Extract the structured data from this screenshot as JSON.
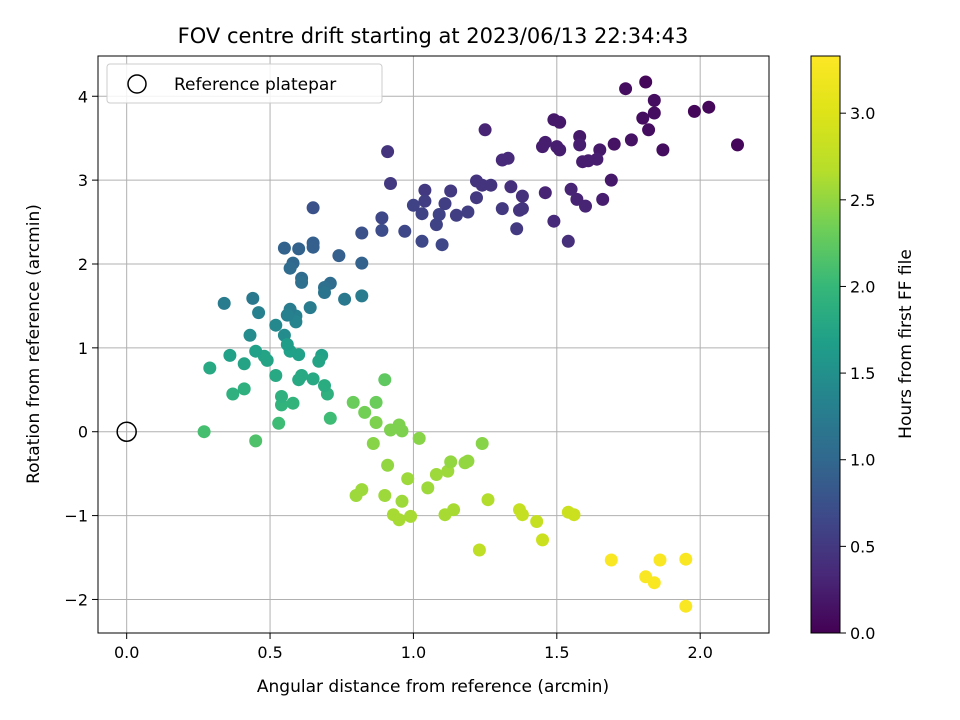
{
  "chart_data": {
    "type": "scatter",
    "title": "FOV centre drift starting at 2023/06/13 22:34:43",
    "xlabel": "Angular distance from reference (arcmin)",
    "ylabel": "Rotation from reference (arcmin)",
    "xlim": [
      -0.1,
      2.24
    ],
    "ylim": [
      -2.4,
      4.48
    ],
    "xticks": [
      0.0,
      0.5,
      1.0,
      1.5,
      2.0
    ],
    "xtick_labels": [
      "0.0",
      "0.5",
      "1.0",
      "1.5",
      "2.0"
    ],
    "yticks": [
      -2,
      -1,
      0,
      1,
      2,
      3,
      4
    ],
    "ytick_labels": [
      "−2",
      "−1",
      "0",
      "1",
      "2",
      "3",
      "4"
    ],
    "grid": true,
    "legend": {
      "location": "upper-left",
      "entries": [
        "Reference platepar"
      ]
    },
    "reference_point": {
      "x": 0.0,
      "y": 0.0,
      "marker": "open-circle",
      "label": "Reference platepar"
    },
    "colorbar": {
      "label": "Hours from first FF file",
      "colormap": "viridis",
      "range": [
        0.0,
        3.33
      ],
      "ticks": [
        0.0,
        0.5,
        1.0,
        1.5,
        2.0,
        2.5,
        3.0
      ],
      "tick_labels": [
        "0.0",
        "0.5",
        "1.0",
        "1.5",
        "2.0",
        "2.5",
        "3.0"
      ]
    },
    "points": [
      [
        2.13,
        3.42,
        0.05
      ],
      [
        2.03,
        3.87,
        0.05
      ],
      [
        1.98,
        3.82,
        0.05
      ],
      [
        1.87,
        3.36,
        0.1
      ],
      [
        1.84,
        3.95,
        0.1
      ],
      [
        1.84,
        3.8,
        0.1
      ],
      [
        1.82,
        3.6,
        0.1
      ],
      [
        1.81,
        4.17,
        0.05
      ],
      [
        1.8,
        3.74,
        0.1
      ],
      [
        1.76,
        3.48,
        0.15
      ],
      [
        1.74,
        4.09,
        0.1
      ],
      [
        1.7,
        3.43,
        0.15
      ],
      [
        1.69,
        3.0,
        0.2
      ],
      [
        1.66,
        2.77,
        0.25
      ],
      [
        1.65,
        3.36,
        0.2
      ],
      [
        1.64,
        3.25,
        0.25
      ],
      [
        1.61,
        3.23,
        0.25
      ],
      [
        1.59,
        3.22,
        0.25
      ],
      [
        1.6,
        2.69,
        0.3
      ],
      [
        1.58,
        3.52,
        0.2
      ],
      [
        1.58,
        3.42,
        0.25
      ],
      [
        1.57,
        2.77,
        0.3
      ],
      [
        1.55,
        2.89,
        0.3
      ],
      [
        1.54,
        2.27,
        0.4
      ],
      [
        1.51,
        3.36,
        0.25
      ],
      [
        1.5,
        3.4,
        0.25
      ],
      [
        1.51,
        3.69,
        0.2
      ],
      [
        1.49,
        3.72,
        0.2
      ],
      [
        1.49,
        2.51,
        0.35
      ],
      [
        1.46,
        3.45,
        0.25
      ],
      [
        1.45,
        3.4,
        0.25
      ],
      [
        1.46,
        2.85,
        0.3
      ],
      [
        1.38,
        2.81,
        0.4
      ],
      [
        1.38,
        2.66,
        0.45
      ],
      [
        1.37,
        2.64,
        0.45
      ],
      [
        1.36,
        2.42,
        0.5
      ],
      [
        1.34,
        2.92,
        0.4
      ],
      [
        1.33,
        3.26,
        0.35
      ],
      [
        1.31,
        3.24,
        0.35
      ],
      [
        1.31,
        2.66,
        0.5
      ],
      [
        1.27,
        2.94,
        0.45
      ],
      [
        1.25,
        3.6,
        0.3
      ],
      [
        1.24,
        2.94,
        0.45
      ],
      [
        1.22,
        2.99,
        0.45
      ],
      [
        1.22,
        2.79,
        0.5
      ],
      [
        1.19,
        2.62,
        0.55
      ],
      [
        1.15,
        2.58,
        0.55
      ],
      [
        1.13,
        2.87,
        0.5
      ],
      [
        1.11,
        2.72,
        0.55
      ],
      [
        1.1,
        2.23,
        0.65
      ],
      [
        1.09,
        2.59,
        0.6
      ],
      [
        1.08,
        2.47,
        0.6
      ],
      [
        1.04,
        2.88,
        0.5
      ],
      [
        1.04,
        2.75,
        0.55
      ],
      [
        1.03,
        2.6,
        0.6
      ],
      [
        1.03,
        2.27,
        0.65
      ],
      [
        1.0,
        2.7,
        0.6
      ],
      [
        0.97,
        2.39,
        0.65
      ],
      [
        0.92,
        2.96,
        0.5
      ],
      [
        0.91,
        3.34,
        0.45
      ],
      [
        0.89,
        2.55,
        0.65
      ],
      [
        0.89,
        2.4,
        0.7
      ],
      [
        0.82,
        2.37,
        0.75
      ],
      [
        0.82,
        2.01,
        0.95
      ],
      [
        0.76,
        1.58,
        1.2
      ],
      [
        0.74,
        2.1,
        0.9
      ],
      [
        0.71,
        1.77,
        1.05
      ],
      [
        0.69,
        1.72,
        1.1
      ],
      [
        0.69,
        1.66,
        1.15
      ],
      [
        0.65,
        2.25,
        0.9
      ],
      [
        0.65,
        2.2,
        0.9
      ],
      [
        0.65,
        2.67,
        0.75
      ],
      [
        0.64,
        1.48,
        1.25
      ],
      [
        0.61,
        1.83,
        1.05
      ],
      [
        0.61,
        1.78,
        1.1
      ],
      [
        0.6,
        2.18,
        0.95
      ],
      [
        0.59,
        1.38,
        1.3
      ],
      [
        0.59,
        1.31,
        1.35
      ],
      [
        0.58,
        2.01,
        1.0
      ],
      [
        0.57,
        1.95,
        1.05
      ],
      [
        0.57,
        1.46,
        1.25
      ],
      [
        0.56,
        1.39,
        1.3
      ],
      [
        0.55,
        1.15,
        1.45
      ],
      [
        0.55,
        2.19,
        0.95
      ],
      [
        0.52,
        1.27,
        1.4
      ],
      [
        0.46,
        1.42,
        1.3
      ],
      [
        0.44,
        1.59,
        1.2
      ],
      [
        0.43,
        1.15,
        1.45
      ],
      [
        0.34,
        1.53,
        1.25
      ],
      [
        0.82,
        1.62,
        1.25
      ],
      [
        0.71,
        0.16,
        2.05
      ],
      [
        0.7,
        0.45,
        1.9
      ],
      [
        0.69,
        0.55,
        1.85
      ],
      [
        0.68,
        0.91,
        1.7
      ],
      [
        0.67,
        0.84,
        1.75
      ],
      [
        0.65,
        0.63,
        1.8
      ],
      [
        0.61,
        0.67,
        1.8
      ],
      [
        0.6,
        0.92,
        1.7
      ],
      [
        0.6,
        0.62,
        1.8
      ],
      [
        0.58,
        0.34,
        1.95
      ],
      [
        0.57,
        0.96,
        1.7
      ],
      [
        0.56,
        1.04,
        1.65
      ],
      [
        0.54,
        0.32,
        1.95
      ],
      [
        0.54,
        0.42,
        1.9
      ],
      [
        0.53,
        0.1,
        2.05
      ],
      [
        0.52,
        0.67,
        1.8
      ],
      [
        0.49,
        0.85,
        1.75
      ],
      [
        0.48,
        0.9,
        1.75
      ],
      [
        0.45,
        0.96,
        1.7
      ],
      [
        0.45,
        -0.11,
        2.15
      ],
      [
        0.41,
        0.51,
        1.9
      ],
      [
        0.41,
        0.81,
        1.75
      ],
      [
        0.37,
        0.45,
        1.9
      ],
      [
        0.36,
        0.91,
        1.7
      ],
      [
        0.29,
        0.76,
        1.8
      ],
      [
        0.27,
        0.0,
        2.1
      ],
      [
        0.9,
        0.62,
        2.25
      ],
      [
        0.92,
        0.02,
        2.4
      ],
      [
        0.95,
        0.08,
        2.4
      ],
      [
        0.96,
        0.01,
        2.4
      ],
      [
        1.02,
        -0.08,
        2.45
      ],
      [
        0.87,
        0.35,
        2.3
      ],
      [
        0.87,
        0.11,
        2.4
      ],
      [
        0.83,
        0.23,
        2.35
      ],
      [
        0.79,
        0.35,
        2.3
      ],
      [
        0.86,
        -0.14,
        2.45
      ],
      [
        0.91,
        -0.4,
        2.5
      ],
      [
        0.93,
        -0.99,
        2.6
      ],
      [
        0.95,
        -1.05,
        2.6
      ],
      [
        0.96,
        -0.83,
        2.55
      ],
      [
        0.99,
        -1.01,
        2.6
      ],
      [
        0.98,
        -0.56,
        2.55
      ],
      [
        0.9,
        -0.76,
        2.55
      ],
      [
        0.82,
        -0.69,
        2.55
      ],
      [
        0.8,
        -0.76,
        2.55
      ],
      [
        1.05,
        -0.67,
        2.55
      ],
      [
        1.08,
        -0.51,
        2.55
      ],
      [
        1.12,
        -0.47,
        2.55
      ],
      [
        1.13,
        -0.36,
        2.5
      ],
      [
        1.18,
        -0.37,
        2.5
      ],
      [
        1.19,
        -0.35,
        2.5
      ],
      [
        1.24,
        -0.14,
        2.45
      ],
      [
        1.11,
        -0.99,
        2.6
      ],
      [
        1.14,
        -0.93,
        2.6
      ],
      [
        1.26,
        -0.81,
        2.65
      ],
      [
        1.23,
        -1.41,
        2.75
      ],
      [
        1.37,
        -0.93,
        2.8
      ],
      [
        1.38,
        -0.99,
        2.8
      ],
      [
        1.43,
        -1.07,
        2.8
      ],
      [
        1.45,
        -1.29,
        2.85
      ],
      [
        1.54,
        -0.96,
        2.85
      ],
      [
        1.56,
        -0.99,
        2.85
      ],
      [
        1.69,
        -1.53,
        3.3
      ],
      [
        1.81,
        -1.73,
        3.3
      ],
      [
        1.84,
        -1.8,
        3.3
      ],
      [
        1.86,
        -1.53,
        3.3
      ],
      [
        1.95,
        -1.52,
        3.3
      ],
      [
        1.95,
        -2.08,
        3.3
      ]
    ]
  }
}
